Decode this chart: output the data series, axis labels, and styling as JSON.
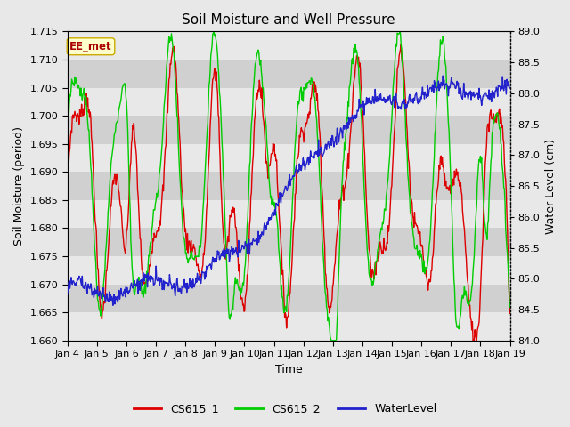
{
  "title": "Soil Moisture and Well Pressure",
  "xlabel": "Time",
  "ylabel_left": "Soil Moisture (period)",
  "ylabel_right": "Water Level (cm)",
  "ylim_left": [
    1.66,
    1.715
  ],
  "ylim_right": [
    84.0,
    89.0
  ],
  "xtick_labels": [
    "Jan 4",
    "Jan 5",
    "Jan 6",
    "Jan 7",
    "Jan 8",
    "Jan 9",
    "Jan 10",
    "Jan 11",
    "Jan 12",
    "Jan 13",
    "Jan 14",
    "Jan 15",
    "Jan 16",
    "Jan 17",
    "Jan 18",
    "Jan 19"
  ],
  "legend_labels": [
    "CS615_1",
    "CS615_2",
    "WaterLevel"
  ],
  "color1": "#dd0000",
  "color2": "#00cc00",
  "color3": "#2222cc",
  "annotation_text": "EE_met",
  "annotation_bg": "#ffffcc",
  "annotation_border": "#ccaa00",
  "fig_bg": "#e8e8e8",
  "plot_bg": "#d8d8d8",
  "title_fontsize": 11,
  "label_fontsize": 9,
  "tick_fontsize": 8,
  "legend_fontsize": 9,
  "linewidth": 1.0,
  "n_points": 720
}
